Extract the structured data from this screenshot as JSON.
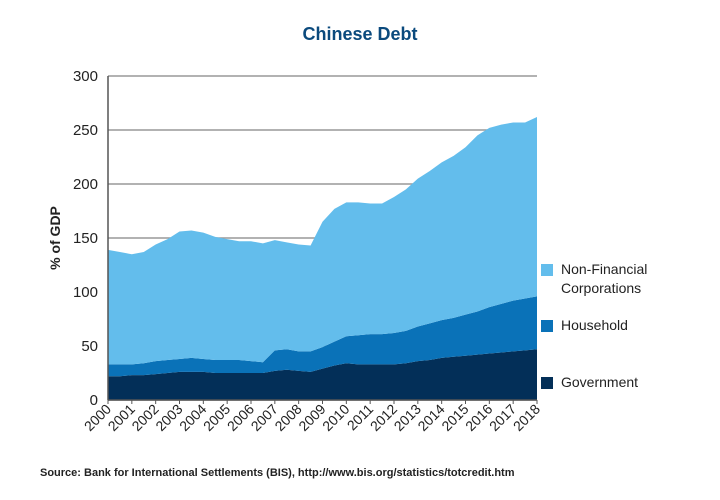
{
  "chart_data": {
    "type": "stacked_area",
    "title": "Chinese Debt",
    "y_label": "% of GDP",
    "source": "Source: Bank for International Settlements (BIS), http://www.bis.org/statistics/totcredit.htm",
    "x": [
      2000,
      2000.5,
      2001,
      2001.5,
      2002,
      2002.5,
      2003,
      2003.5,
      2004,
      2004.5,
      2005,
      2005.5,
      2006,
      2006.5,
      2007,
      2007.5,
      2008,
      2008.5,
      2009,
      2009.5,
      2010,
      2010.5,
      2011,
      2011.5,
      2012,
      2012.5,
      2013,
      2013.5,
      2014,
      2014.5,
      2015,
      2015.5,
      2016,
      2016.5,
      2017,
      2017.5,
      2018
    ],
    "xlim": [
      2000,
      2018
    ],
    "xticks": [
      2000,
      2001,
      2002,
      2003,
      2004,
      2005,
      2006,
      2007,
      2008,
      2009,
      2010,
      2011,
      2012,
      2013,
      2014,
      2015,
      2016,
      2017,
      2018
    ],
    "ylim": [
      0,
      300
    ],
    "yticks": [
      0,
      50,
      100,
      150,
      200,
      250,
      300
    ],
    "grid": true,
    "series": [
      {
        "name": "Government",
        "color": "#032f58",
        "values": [
          22,
          22,
          23,
          23,
          24,
          25,
          26,
          26,
          26,
          25,
          25,
          25,
          25,
          25,
          27,
          28,
          27,
          26,
          29,
          32,
          34,
          33,
          33,
          33,
          33,
          34,
          36,
          37,
          39,
          40,
          41,
          42,
          43,
          44,
          45,
          46,
          47
        ]
      },
      {
        "name": "Household",
        "color": "#0a72b8",
        "values": [
          11,
          11,
          10,
          11,
          12,
          12,
          12,
          13,
          12,
          12,
          12,
          12,
          11,
          10,
          19,
          19,
          18,
          19,
          20,
          22,
          25,
          27,
          28,
          28,
          29,
          30,
          32,
          34,
          35,
          36,
          38,
          40,
          43,
          45,
          47,
          48,
          49
        ]
      },
      {
        "name": "Non-Financial Corporations",
        "color": "#63bdec",
        "values": [
          106,
          104,
          102,
          103,
          108,
          112,
          118,
          118,
          117,
          114,
          112,
          110,
          111,
          110,
          102,
          99,
          99,
          98,
          116,
          123,
          124,
          123,
          121,
          121,
          126,
          131,
          137,
          141,
          146,
          150,
          155,
          163,
          166,
          166,
          165,
          163,
          166
        ]
      }
    ]
  }
}
